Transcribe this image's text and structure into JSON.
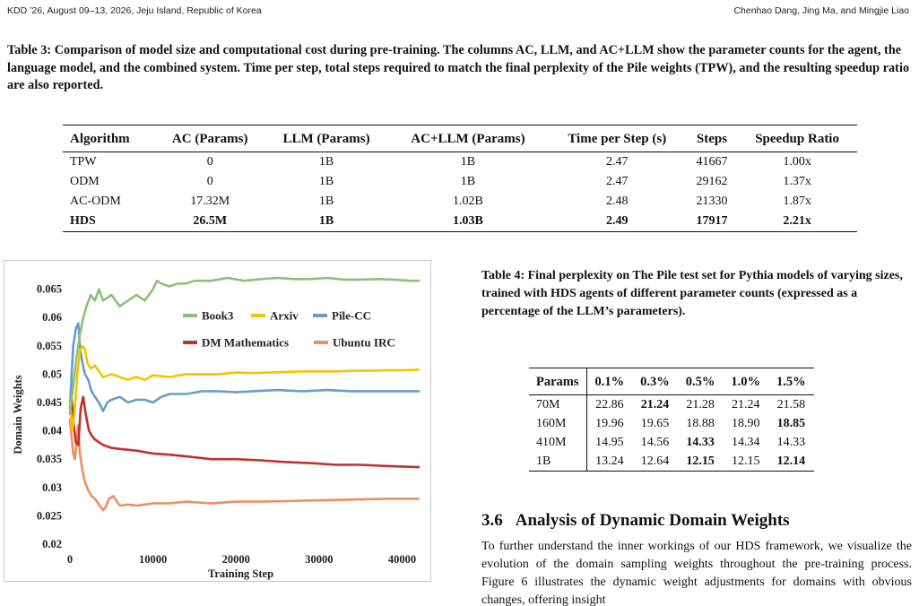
{
  "header": {
    "left": "KDD ’26, August 09–13, 2026, Jeju Island, Republic of Korea",
    "right": "Chenhao Dang, Jing Ma, and Mingjie Liao"
  },
  "table3": {
    "caption": "Table 3: Comparison of model size and computational cost during pre-training. The columns AC, LLM, and AC+LLM show the parameter counts for the agent, the language model, and the combined system. Time per step, total steps required to match the final perplexity of the Pile weights (TPW), and the resulting speedup ratio are also reported.",
    "columns": [
      "Algorithm",
      "AC (Params)",
      "LLM (Params)",
      "AC+LLM (Params)",
      "Time per Step (s)",
      "Steps",
      "Speedup Ratio"
    ],
    "rows": [
      [
        "TPW",
        "0",
        "1B",
        "1B",
        "2.47",
        "41667",
        "1.00x"
      ],
      [
        "ODM",
        "0",
        "1B",
        "1B",
        "2.47",
        "29162",
        "1.37x"
      ],
      [
        "AC-ODM",
        "17.32M",
        "1B",
        "1.02B",
        "2.48",
        "21330",
        "1.87x"
      ],
      [
        "HDS",
        "26.5M",
        "1B",
        "1.03B",
        "2.49",
        "17917",
        "2.21x"
      ]
    ]
  },
  "table4": {
    "caption": "Table 4: Final perplexity on The Pile test set for Pythia models of varying sizes, trained with HDS agents of different parameter counts (expressed as a percentage of the LLM’s parameters).",
    "columns": [
      "Params",
      "0.1%",
      "0.3%",
      "0.5%",
      "1.0%",
      "1.5%"
    ],
    "rows": [
      [
        "70M",
        "22.86",
        "21.24",
        "21.28",
        "21.24",
        "21.58"
      ],
      [
        "160M",
        "19.96",
        "19.65",
        "18.88",
        "18.90",
        "18.85"
      ],
      [
        "410M",
        "14.95",
        "14.56",
        "14.33",
        "14.34",
        "14.33"
      ],
      [
        "1B",
        "13.24",
        "12.64",
        "12.15",
        "12.15",
        "12.14"
      ]
    ],
    "bold_cells": [
      [
        0,
        2
      ],
      [
        1,
        5
      ],
      [
        2,
        3
      ],
      [
        3,
        3
      ],
      [
        3,
        5
      ]
    ]
  },
  "section": {
    "number": "3.6",
    "title": "Analysis of Dynamic Domain Weights",
    "body": "To further understand the inner workings of our HDS framework, we visualize the evolution of the domain sampling weights throughout the pre-training process. Figure 6 illustrates the dynamic weight adjustments for domains with obvious changes, offering insight"
  },
  "chart_data": {
    "type": "line",
    "xlabel": "Training Step",
    "ylabel": "Domain Weights",
    "xlim": [
      0,
      42000
    ],
    "ylim": [
      0.02,
      0.067
    ],
    "xticks": [
      "0",
      "10000",
      "20000",
      "30000",
      "40000"
    ],
    "yticks": [
      "0.02",
      "0.025",
      "0.03",
      "0.035",
      "0.04",
      "0.045",
      "0.05",
      "0.055",
      "0.06",
      "0.065"
    ],
    "legend_position": "top-right",
    "series": [
      {
        "name": "Book3",
        "color": "#8dbf7c",
        "x": [
          0,
          400,
          800,
          1200,
          1600,
          2000,
          2500,
          3000,
          3500,
          4000,
          5000,
          6000,
          7000,
          8000,
          9000,
          10000,
          10500,
          11000,
          12000,
          13000,
          14000,
          15000,
          17000,
          19000,
          21000,
          23000,
          25000,
          27000,
          29000,
          31000,
          33000,
          35000,
          37000,
          39000,
          41000,
          42000
        ],
        "y": [
          0.043,
          0.048,
          0.053,
          0.057,
          0.06,
          0.062,
          0.064,
          0.063,
          0.065,
          0.063,
          0.064,
          0.062,
          0.063,
          0.064,
          0.063,
          0.065,
          0.0665,
          0.066,
          0.0655,
          0.066,
          0.066,
          0.0665,
          0.0665,
          0.067,
          0.0665,
          0.0668,
          0.067,
          0.0668,
          0.0668,
          0.067,
          0.0667,
          0.0667,
          0.0668,
          0.0667,
          0.0665,
          0.0665
        ]
      },
      {
        "name": "Arxiv",
        "color": "#f3c400",
        "x": [
          0,
          300,
          600,
          900,
          1200,
          1500,
          1800,
          2100,
          2500,
          3000,
          3500,
          4000,
          5000,
          6000,
          7000,
          8000,
          9000,
          10000,
          12000,
          14000,
          16000,
          18000,
          20000,
          22000,
          24000,
          26000,
          28000,
          30000,
          32000,
          34000,
          36000,
          38000,
          40000,
          42000
        ],
        "y": [
          0.045,
          0.04,
          0.044,
          0.05,
          0.054,
          0.055,
          0.0545,
          0.052,
          0.051,
          0.0515,
          0.0505,
          0.0495,
          0.05,
          0.0495,
          0.049,
          0.0495,
          0.049,
          0.0498,
          0.0495,
          0.05,
          0.05,
          0.05,
          0.0503,
          0.0502,
          0.0503,
          0.0504,
          0.0505,
          0.0505,
          0.0505,
          0.0506,
          0.0506,
          0.0507,
          0.0507,
          0.0508
        ]
      },
      {
        "name": "Pile-CC",
        "color": "#6b9dc8",
        "x": [
          0,
          200,
          400,
          700,
          1000,
          1200,
          1500,
          1800,
          2200,
          2600,
          3000,
          3500,
          4000,
          4500,
          5000,
          6000,
          7000,
          8000,
          9000,
          10000,
          11000,
          12000,
          14000,
          16000,
          18000,
          20000,
          22000,
          25000,
          28000,
          31000,
          34000,
          37000,
          40000,
          42000
        ],
        "y": [
          0.044,
          0.05,
          0.055,
          0.058,
          0.059,
          0.055,
          0.052,
          0.05,
          0.049,
          0.047,
          0.046,
          0.045,
          0.0435,
          0.045,
          0.0455,
          0.046,
          0.045,
          0.0455,
          0.0455,
          0.045,
          0.046,
          0.0465,
          0.0465,
          0.047,
          0.047,
          0.0468,
          0.047,
          0.0472,
          0.047,
          0.0472,
          0.047,
          0.047,
          0.047,
          0.047
        ]
      },
      {
        "name": "DM Mathematics",
        "color": "#c0312b",
        "x": [
          0,
          200,
          400,
          700,
          1000,
          1300,
          1600,
          1900,
          2300,
          2700,
          3000,
          3500,
          4000,
          5000,
          6000,
          8000,
          10000,
          12000,
          14000,
          17000,
          20000,
          23000,
          26000,
          29000,
          32000,
          35000,
          38000,
          40000,
          42000
        ],
        "y": [
          0.045,
          0.046,
          0.042,
          0.038,
          0.0375,
          0.044,
          0.046,
          0.043,
          0.04,
          0.039,
          0.0385,
          0.038,
          0.0375,
          0.037,
          0.0368,
          0.0365,
          0.036,
          0.0358,
          0.0355,
          0.035,
          0.035,
          0.0348,
          0.0345,
          0.0343,
          0.034,
          0.034,
          0.0338,
          0.0337,
          0.0336
        ]
      },
      {
        "name": "Ubuntu IRC",
        "color": "#ee8f61",
        "x": [
          0,
          200,
          400,
          600,
          800,
          1000,
          1200,
          1500,
          1800,
          2200,
          2600,
          3000,
          3500,
          4000,
          4300,
          4700,
          5200,
          6000,
          7000,
          8000,
          9000,
          10000,
          12000,
          14000,
          17000,
          20000,
          23000,
          26000,
          29000,
          32000,
          35000,
          38000,
          40000,
          42000
        ],
        "y": [
          0.042,
          0.039,
          0.036,
          0.035,
          0.038,
          0.041,
          0.036,
          0.033,
          0.031,
          0.0295,
          0.0285,
          0.028,
          0.027,
          0.026,
          0.0265,
          0.028,
          0.0285,
          0.0268,
          0.027,
          0.0268,
          0.027,
          0.0272,
          0.0272,
          0.0275,
          0.0272,
          0.0275,
          0.0275,
          0.0276,
          0.0277,
          0.0278,
          0.0279,
          0.028,
          0.028,
          0.028
        ]
      }
    ]
  }
}
